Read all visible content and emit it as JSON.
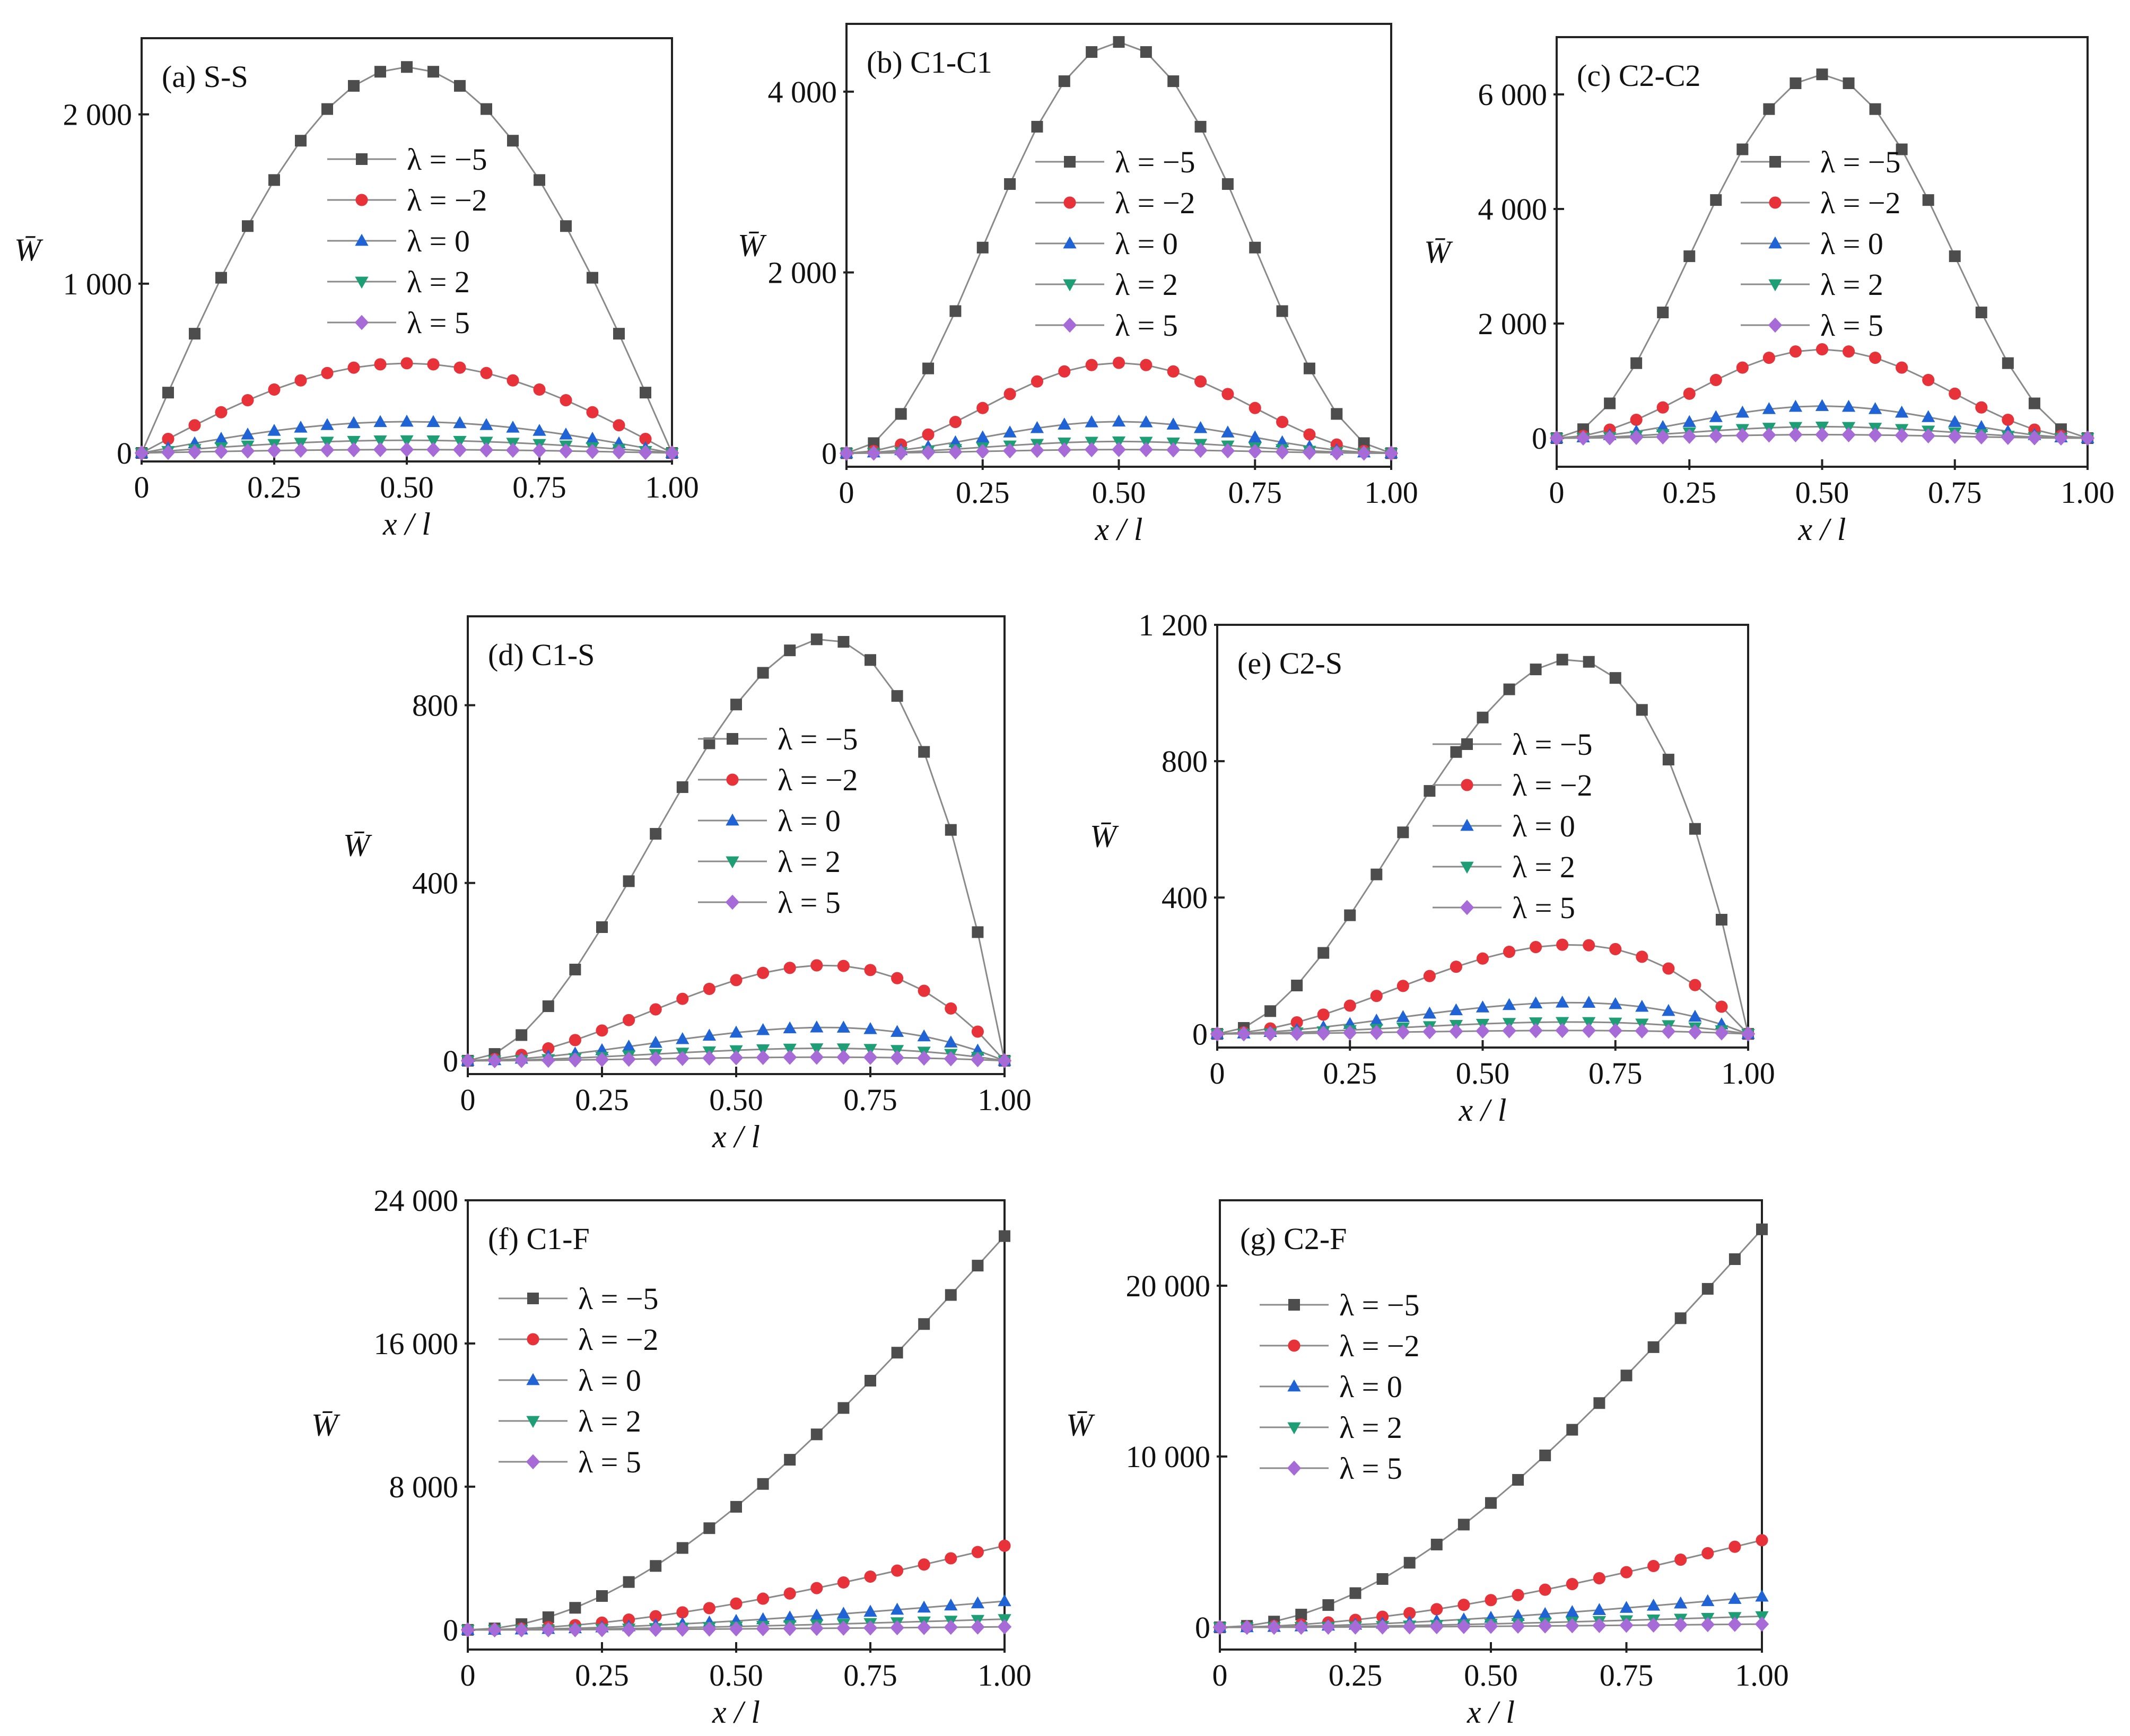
{
  "colors": {
    "lambda_m5": "#4d4d4d",
    "lambda_m2": "#e8323a",
    "lambda_0": "#1f63d4",
    "lambda_2": "#1e9e74",
    "lambda_5": "#a66bd6",
    "line": "#8a8a8a"
  },
  "markers": {
    "lambda_m5": "square",
    "lambda_m2": "circle",
    "lambda_0": "triangle-up",
    "lambda_2": "triangle-down",
    "lambda_5": "diamond"
  },
  "chart_data": [
    {
      "id": "a",
      "type": "line",
      "panel_label": "(a) S-S",
      "xlabel": "x / l",
      "ylabel": "W̄",
      "xlim": [
        0,
        1
      ],
      "ylim": [
        -50,
        2450
      ],
      "xticks": [
        0,
        0.25,
        0.5,
        0.75,
        1.0
      ],
      "xtick_labels": [
        "0",
        "0.25",
        "0.50",
        "0.75",
        "1.00"
      ],
      "yticks": [
        0,
        1000,
        2000
      ],
      "ytick_labels": [
        "0",
        "1 000",
        "2 000"
      ],
      "legend": {
        "position": "center-right"
      },
      "shape": "sine",
      "x_start": 0.0,
      "step": 0.05,
      "series": [
        {
          "name": "λ = −5",
          "key": "lambda_m5",
          "peak": 2280
        },
        {
          "name": "λ = −2",
          "key": "lambda_m2",
          "peak": 530
        },
        {
          "name": "λ = 0",
          "key": "lambda_0",
          "peak": 185
        },
        {
          "name": "λ = 2",
          "key": "lambda_2",
          "peak": 75
        },
        {
          "name": "λ = 5",
          "key": "lambda_5",
          "peak": 20
        }
      ]
    },
    {
      "id": "b",
      "type": "line",
      "panel_label": "(b) C1-C1",
      "xlabel": "x / l",
      "ylabel": "W̄",
      "xlim": [
        0,
        1
      ],
      "ylim": [
        -150,
        4750
      ],
      "xticks": [
        0,
        0.25,
        0.5,
        0.75,
        1.0
      ],
      "xtick_labels": [
        "0",
        "0.25",
        "0.50",
        "0.75",
        "1.00"
      ],
      "yticks": [
        0,
        2000,
        4000
      ],
      "ytick_labels": [
        "0",
        "2 000",
        "4 000"
      ],
      "legend": {
        "position": "center-right"
      },
      "shape": "sine2",
      "x_start": 0.0,
      "step": 0.05,
      "series": [
        {
          "name": "λ = −5",
          "key": "lambda_m5",
          "peak": 4550
        },
        {
          "name": "λ = −2",
          "key": "lambda_m2",
          "peak": 1000
        },
        {
          "name": "λ = 0",
          "key": "lambda_0",
          "peak": 350
        },
        {
          "name": "λ = 2",
          "key": "lambda_2",
          "peak": 130
        },
        {
          "name": "λ = 5",
          "key": "lambda_5",
          "peak": 40
        }
      ]
    },
    {
      "id": "c",
      "type": "line",
      "panel_label": "(c) C2-C2",
      "xlabel": "x / l",
      "ylabel": "W̄",
      "xlim": [
        0,
        1
      ],
      "ylim": [
        -500,
        7000
      ],
      "xticks": [
        0,
        0.25,
        0.5,
        0.75,
        1.0
      ],
      "xtick_labels": [
        "0",
        "0.25",
        "0.50",
        "0.75",
        "1.00"
      ],
      "yticks": [
        0,
        2000,
        4000,
        6000
      ],
      "ytick_labels": [
        "0",
        "2 000",
        "4 000",
        "6 000"
      ],
      "legend": {
        "position": "center-right"
      },
      "shape": "sine2",
      "x_start": 0.0,
      "step": 0.05,
      "series": [
        {
          "name": "λ = −5",
          "key": "lambda_m5",
          "peak": 6350
        },
        {
          "name": "λ = −2",
          "key": "lambda_m2",
          "peak": 1550
        },
        {
          "name": "λ = 0",
          "key": "lambda_0",
          "peak": 560
        },
        {
          "name": "λ = 2",
          "key": "lambda_2",
          "peak": 200
        },
        {
          "name": "λ = 5",
          "key": "lambda_5",
          "peak": 60
        }
      ]
    },
    {
      "id": "d",
      "type": "line",
      "panel_label": "(d) C1-S",
      "xlabel": "x / l",
      "ylabel": "W̄",
      "xlim": [
        0,
        1
      ],
      "ylim": [
        -30,
        1000
      ],
      "xticks": [
        0,
        0.25,
        0.5,
        0.75,
        1.0
      ],
      "xtick_labels": [
        "0",
        "0.25",
        "0.50",
        "0.75",
        "1.00"
      ],
      "yticks": [
        0,
        400,
        800
      ],
      "ytick_labels": [
        "0",
        "400",
        "800"
      ],
      "legend": {
        "position": "center-right"
      },
      "shape": "clamped-simple",
      "x_start": 0.0,
      "step": 0.05,
      "series": [
        {
          "name": "λ = −5",
          "key": "lambda_m5",
          "peak": 950
        },
        {
          "name": "λ = −2",
          "key": "lambda_m2",
          "peak": 215
        },
        {
          "name": "λ = 0",
          "key": "lambda_0",
          "peak": 75
        },
        {
          "name": "λ = 2",
          "key": "lambda_2",
          "peak": 28
        },
        {
          "name": "λ = 5",
          "key": "lambda_5",
          "peak": 8
        }
      ]
    },
    {
      "id": "e",
      "type": "line",
      "panel_label": "(e) C2-S",
      "xlabel": "x / l",
      "ylabel": "W̄",
      "xlim": [
        0,
        1
      ],
      "ylim": [
        -40,
        1200
      ],
      "xticks": [
        0,
        0.25,
        0.5,
        0.75,
        1.0
      ],
      "xtick_labels": [
        "0",
        "0.25",
        "0.50",
        "0.75",
        "1.00"
      ],
      "yticks": [
        0,
        400,
        800,
        1200
      ],
      "ytick_labels": [
        "0",
        "400",
        "800",
        "1 200"
      ],
      "legend": {
        "position": "center-right"
      },
      "shape": "clamped-simple",
      "x_start": 0.0,
      "step": 0.05,
      "series": [
        {
          "name": "λ = −5",
          "key": "lambda_m5",
          "peak": 1100
        },
        {
          "name": "λ = −2",
          "key": "lambda_m2",
          "peak": 262
        },
        {
          "name": "λ = 0",
          "key": "lambda_0",
          "peak": 92
        },
        {
          "name": "λ = 2",
          "key": "lambda_2",
          "peak": 35
        },
        {
          "name": "λ = 5",
          "key": "lambda_5",
          "peak": 10
        }
      ]
    },
    {
      "id": "f",
      "type": "line",
      "panel_label": "(f) C1-F",
      "xlabel": "x / l",
      "ylabel": "W̄",
      "xlim": [
        0,
        1
      ],
      "ylim": [
        -1100,
        24000
      ],
      "xticks": [
        0,
        0.25,
        0.5,
        0.75,
        1.0
      ],
      "xtick_labels": [
        "0",
        "0.25",
        "0.50",
        "0.75",
        "1.00"
      ],
      "yticks": [
        0,
        8000,
        16000,
        24000
      ],
      "ytick_labels": [
        "0",
        "8 000",
        "16 000",
        "24 000"
      ],
      "legend": {
        "position": "upper-left"
      },
      "shape": "cantilever",
      "x_start": 0.0,
      "step": 0.05,
      "series": [
        {
          "name": "λ = −5",
          "key": "lambda_m5",
          "peak": 22000
        },
        {
          "name": "λ = −2",
          "key": "lambda_m2",
          "peak": 4700
        },
        {
          "name": "λ = 0",
          "key": "lambda_0",
          "peak": 1600
        },
        {
          "name": "λ = 2",
          "key": "lambda_2",
          "peak": 600
        },
        {
          "name": "λ = 5",
          "key": "lambda_5",
          "peak": 170
        }
      ]
    },
    {
      "id": "g",
      "type": "line",
      "panel_label": "(g) C2-F",
      "xlabel": "x / l",
      "ylabel": "W̄",
      "xlim": [
        0,
        1
      ],
      "ylim": [
        -1300,
        25000
      ],
      "xticks": [
        0,
        0.25,
        0.5,
        0.75,
        1.0
      ],
      "xtick_labels": [
        "0",
        "0.25",
        "0.50",
        "0.75",
        "1.00"
      ],
      "yticks": [
        0,
        10000,
        20000
      ],
      "ytick_labels": [
        "0",
        "10 000",
        "20 000"
      ],
      "legend": {
        "position": "upper-left"
      },
      "shape": "cantilever",
      "x_start": 0.0,
      "step": 0.05,
      "series": [
        {
          "name": "λ = −5",
          "key": "lambda_m5",
          "peak": 23300
        },
        {
          "name": "λ = −2",
          "key": "lambda_m2",
          "peak": 5100
        },
        {
          "name": "λ = 0",
          "key": "lambda_0",
          "peak": 1800
        },
        {
          "name": "λ = 2",
          "key": "lambda_2",
          "peak": 650
        },
        {
          "name": "λ = 5",
          "key": "lambda_5",
          "peak": 190
        }
      ]
    }
  ]
}
